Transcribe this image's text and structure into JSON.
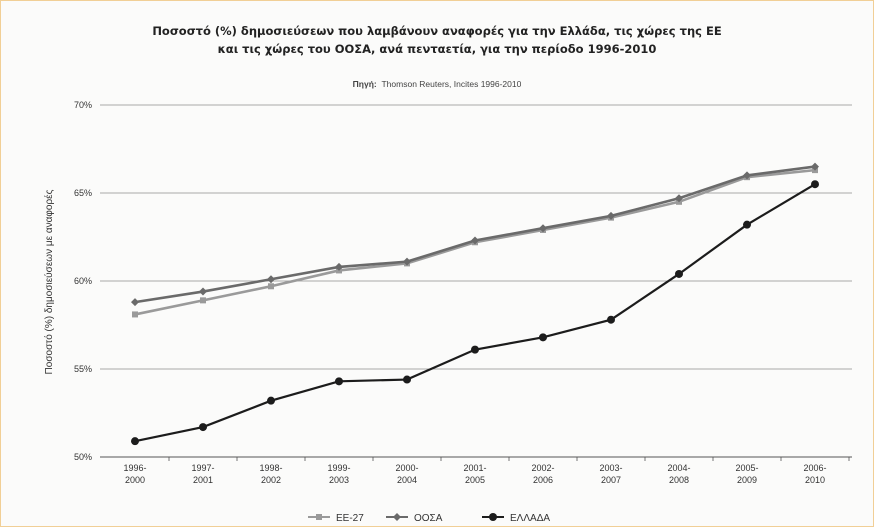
{
  "chart_data": {
    "type": "line",
    "title_line1": "Ποσοστό (%) δημοσιεύσεων που λαμβάνουν αναφορές για την Ελλάδα, τις χώρες της ΕΕ",
    "title_line2": "και τις χώρες του ΟΟΣΑ, ανά πενταετία, για την περίοδο 1996-2010",
    "source_label": "Πηγή:",
    "source_text": "Thomson Reuters, Incites 1996-2010",
    "ylabel": "Ποσοστό (%) δημοσιεύσεων με αναφορές",
    "xlabel": "",
    "ylim": [
      50,
      70
    ],
    "yticks": [
      "70%",
      "65%",
      "60%",
      "55%",
      "50%"
    ],
    "ytick_values": [
      70,
      65,
      60,
      55,
      50
    ],
    "grid": true,
    "legend_position": "bottom",
    "categories": [
      [
        "1996-",
        "2000"
      ],
      [
        "1997-",
        "2001"
      ],
      [
        "1998-",
        "2002"
      ],
      [
        "1999-",
        "2003"
      ],
      [
        "2000-",
        "2004"
      ],
      [
        "2001-",
        "2005"
      ],
      [
        "2002-",
        "2006"
      ],
      [
        "2003-",
        "2007"
      ],
      [
        "2004-",
        "2008"
      ],
      [
        "2005-",
        "2009"
      ],
      [
        "2006-",
        "2010"
      ]
    ],
    "series": [
      {
        "name": "ΕΕ-27",
        "color": "#9a9a9a",
        "marker": "square",
        "values": [
          58.1,
          58.9,
          59.7,
          60.6,
          61.0,
          62.2,
          62.9,
          63.6,
          64.5,
          65.9,
          66.3
        ]
      },
      {
        "name": "ΟΟΣΑ",
        "color": "#6a6a6a",
        "marker": "diamond",
        "values": [
          58.8,
          59.4,
          60.1,
          60.8,
          61.1,
          62.3,
          63.0,
          63.7,
          64.7,
          66.0,
          66.5
        ]
      },
      {
        "name": "ΕΛΛΑΔΑ",
        "color": "#1c1c1c",
        "marker": "circle",
        "values": [
          50.9,
          51.7,
          53.2,
          54.3,
          54.4,
          56.1,
          56.8,
          57.8,
          60.4,
          63.2,
          65.5
        ]
      }
    ]
  }
}
